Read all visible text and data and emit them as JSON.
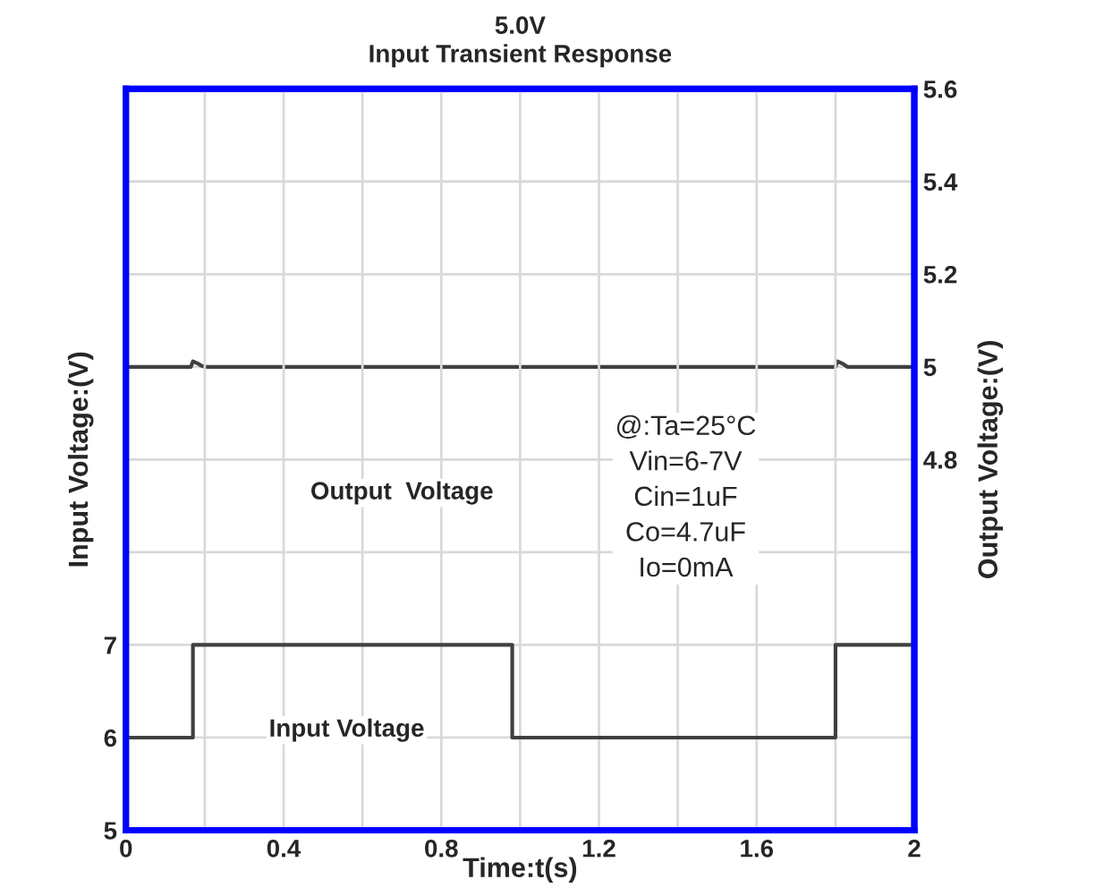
{
  "chart_data": {
    "type": "line",
    "title": "5.0V",
    "subtitle": "Input Transient Response",
    "xlabel": "Time:t(s)",
    "ylabel": "Input Voltage:(V)",
    "y2label": "Output Voltage:(V)",
    "xlim": [
      0,
      2
    ],
    "xticks": [
      0,
      {
        "value": 0.2,
        "label": null
      },
      0.4,
      {
        "value": 0.6,
        "label": null
      },
      0.8,
      {
        "value": 1.0,
        "label": null
      },
      1.2,
      {
        "value": 1.4,
        "label": null
      },
      1.6,
      {
        "value": 1.8,
        "label": null
      },
      2
    ],
    "ylim": [
      5,
      13
    ],
    "yticks": [
      5,
      6,
      7
    ],
    "y2lim": [
      4.0,
      5.6
    ],
    "y2ticks": [
      {
        "value": 4.0,
        "label": null
      },
      {
        "value": 4.2,
        "label": null
      },
      {
        "value": 4.4,
        "label": null
      },
      {
        "value": 4.6,
        "label": null
      },
      4.8,
      5,
      5.2,
      5.4,
      5.6
    ],
    "grid": true,
    "series": [
      {
        "type": "step",
        "color": "#404040",
        "x": [
          0,
          0.17,
          0.98,
          1.8,
          2.0
        ],
        "values": [
          6,
          7,
          6,
          7,
          7
        ]
      },
      {
        "axis": "y2",
        "color": "#404040",
        "x": [
          0,
          0.165,
          0.17,
          0.185,
          0.19,
          0.2,
          1.8,
          1.805,
          1.82,
          1.83,
          2.0
        ],
        "values": [
          5.0,
          5.0,
          5.012,
          5.006,
          5.003,
          5.0,
          5.0,
          5.012,
          5.006,
          5.0,
          5.0
        ]
      }
    ],
    "annotations": [
      "Output  Voltage",
      "Input Voltage",
      "@:Ta=25°C\nVin=6-7V\nCin=1uF\nCo=4.7uF\nIo=0mA"
    ]
  }
}
